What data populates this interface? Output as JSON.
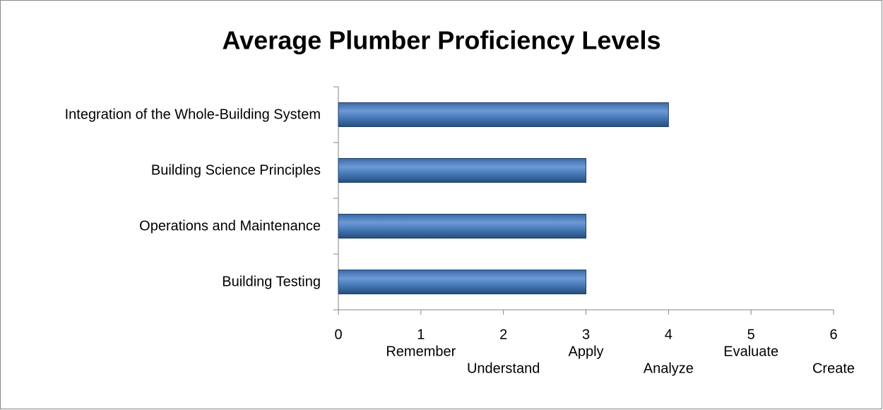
{
  "chart_data": {
    "type": "hbar",
    "title": "Average Plumber Proficiency Levels",
    "categories": [
      "Integration of the Whole-Building System",
      "Building Science Principles",
      "Operations and Maintenance",
      "Building Testing"
    ],
    "values": [
      4,
      3,
      3,
      3
    ],
    "color": "#4a7ebb",
    "xlim": [
      0,
      6
    ],
    "xticks": [
      0,
      1,
      2,
      3,
      4,
      5,
      6
    ],
    "annotations": [
      {
        "text": "Remember",
        "x": 1
      },
      {
        "text": "Understand",
        "x": 2
      },
      {
        "text": "Apply",
        "x": 3
      },
      {
        "text": "Analyze",
        "x": 4
      },
      {
        "text": "Evaluate",
        "x": 5
      },
      {
        "text": "Create",
        "x": 6
      }
    ]
  }
}
